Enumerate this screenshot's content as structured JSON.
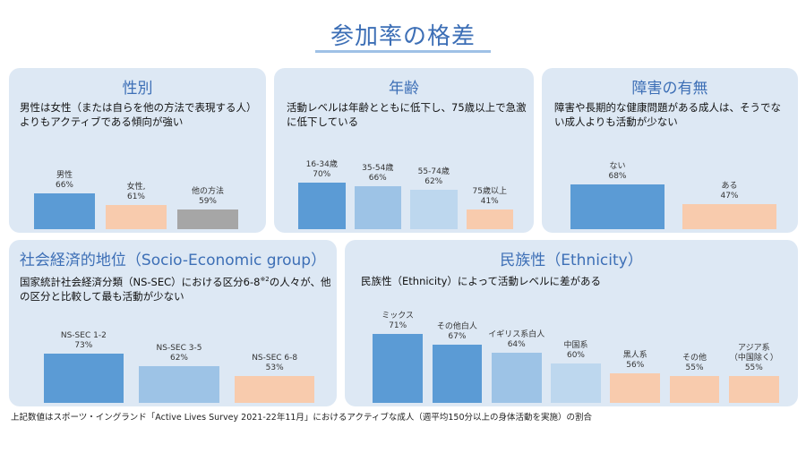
{
  "page": {
    "title": "参加率の格差",
    "footnote": "上記数値はスポーツ・イングランド「Active Lives Survey 2021-22年11月」におけるアクティブな成人（週平均150分以上の身体活動を実施）の割合"
  },
  "colors": {
    "panel_bg": "#dde8f4",
    "title": "#3d6fb6",
    "blue_dark": "#5b9bd5",
    "blue_mid": "#9dc3e6",
    "blue_light": "#bdd7ee",
    "peach": "#f8cbad",
    "gray": "#a6a6a6"
  },
  "panels": {
    "sex": {
      "title": "性別",
      "desc": "男性は女性（または自らを他の方法で表現する人）よりもアクティブである傾向が強い"
    },
    "age": {
      "title": "年齢",
      "desc": "活動レベルは年齢とともに低下し、75歳以上で急激に低下している"
    },
    "disability": {
      "title": "障害の有無",
      "desc": "障害や長期的な健康問題がある成人は、そうでない成人よりも活動が少ない"
    },
    "nssec": {
      "title": "社会経済的地位（Socio-Economic group）",
      "desc_pre": "国家統計社会経済分類（NS-SEC）における区分6-8",
      "desc_sup": "※2",
      "desc_post": "の人々が、他の区分と比較して最も活動が少ない"
    },
    "ethnicity": {
      "title": "民族性（Ethnicity）",
      "desc": "民族性（Ethnicity）によって活動レベルに差がある"
    }
  },
  "chart_data": [
    {
      "id": "sex",
      "type": "bar",
      "categories": [
        "男性",
        "女性,",
        "他の方法"
      ],
      "values": [
        66,
        61,
        59
      ],
      "value_labels": [
        "66%",
        "61%",
        "59%"
      ],
      "colors": [
        "#5b9bd5",
        "#f8cbad",
        "#a6a6a6"
      ],
      "ylim": [
        50,
        70
      ]
    },
    {
      "id": "age",
      "type": "bar",
      "categories": [
        "16-34歳",
        "35-54歳",
        "55-74歳",
        "75歳以上"
      ],
      "values": [
        70,
        66,
        62,
        41
      ],
      "value_labels": [
        "70%",
        "66%",
        "62%",
        "41%"
      ],
      "colors": [
        "#5b9bd5",
        "#9dc3e6",
        "#bdd7ee",
        "#f8cbad"
      ],
      "ylim": [
        20,
        70
      ]
    },
    {
      "id": "disability",
      "type": "bar",
      "categories": [
        "ない",
        "ある"
      ],
      "values": [
        68,
        47
      ],
      "value_labels": [
        "68%",
        "47%"
      ],
      "colors": [
        "#5b9bd5",
        "#f8cbad"
      ],
      "ylim": [
        20,
        70
      ]
    },
    {
      "id": "nssec",
      "type": "bar",
      "categories": [
        "NS-SEC 1-2",
        "NS-SEC 3-5",
        "NS-SEC 6-8"
      ],
      "values": [
        73,
        62,
        53
      ],
      "value_labels": [
        "73%",
        "62%",
        "53%"
      ],
      "colors": [
        "#5b9bd5",
        "#9dc3e6",
        "#f8cbad"
      ],
      "ylim": [
        30,
        75
      ]
    },
    {
      "id": "ethnicity",
      "type": "bar",
      "categories": [
        "ミックス",
        "その他白人",
        "イギリス系白人",
        "中国系",
        "黒人系",
        "その他",
        "アジア系\n（中国除く）"
      ],
      "values": [
        71,
        67,
        64,
        60,
        56,
        55,
        55
      ],
      "value_labels": [
        "71%",
        "67%",
        "64%",
        "60%",
        "56%",
        "55%",
        "55%"
      ],
      "colors": [
        "#5b9bd5",
        "#5b9bd5",
        "#9dc3e6",
        "#bdd7ee",
        "#f8cbad",
        "#f8cbad",
        "#f8cbad"
      ],
      "ylim": [
        45,
        72
      ]
    }
  ]
}
